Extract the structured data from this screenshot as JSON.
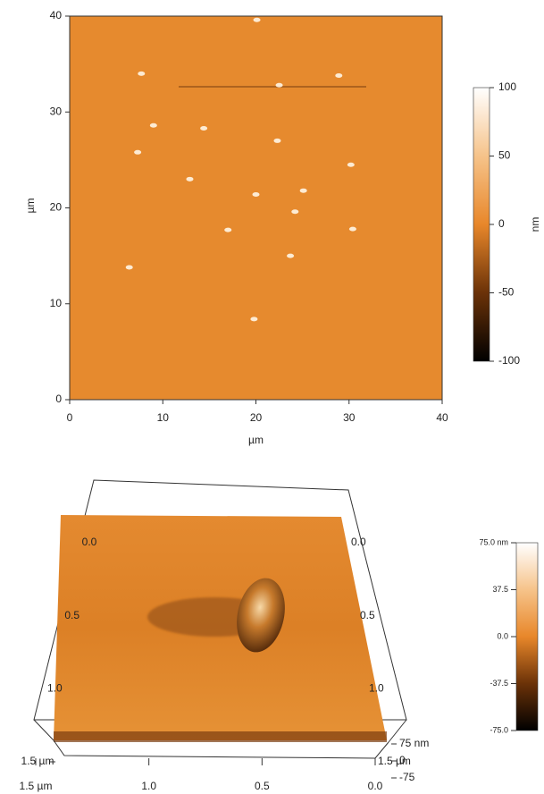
{
  "chart_data": [
    {
      "type": "afm-map",
      "xlabel": "µm",
      "ylabel": "µm",
      "xlim": [
        0,
        40
      ],
      "ylim": [
        0,
        40
      ],
      "xticks": [
        0,
        10,
        20,
        30,
        40
      ],
      "yticks": [
        0,
        10,
        20,
        30,
        40
      ],
      "spots": {
        "x": [
          20.1,
          22.5,
          7.7,
          28.9,
          9.0,
          14.4,
          22.3,
          7.3,
          30.2,
          12.9,
          20.0,
          25.1,
          24.2,
          17.0,
          30.4,
          23.7,
          6.4,
          19.8
        ],
        "y": [
          39.6,
          32.8,
          34.0,
          33.8,
          28.6,
          28.3,
          27.0,
          25.8,
          24.5,
          23.0,
          21.4,
          21.8,
          19.6,
          17.7,
          17.8,
          15.0,
          13.8,
          8.4
        ]
      },
      "colorbar": {
        "lim": [
          -100,
          100
        ],
        "ticks": [
          100,
          50,
          0,
          -50,
          -100
        ],
        "label": "nm"
      }
    },
    {
      "type": "surface3d",
      "xlim": [
        0,
        1.5
      ],
      "xticks": [
        {
          "value": 1.5,
          "label": "1.5 µm"
        },
        {
          "value": 1,
          "label": "1.0"
        },
        0.5,
        {
          "value": 0,
          "label": "0.0"
        }
      ],
      "ylim": [
        0,
        1.5
      ],
      "yticks": [
        {
          "value": 0,
          "label": "0.0"
        },
        0.5,
        {
          "value": 1,
          "label": "1.0"
        },
        {
          "value": 1.5,
          "label": "1.5 µm"
        }
      ],
      "zlim": [
        -75,
        75
      ],
      "zticks": [
        {
          "value": 75,
          "label": "75 nm"
        },
        0,
        -75
      ],
      "colorbar": {
        "lim": [
          -75,
          75
        ],
        "ticks": [
          {
            "value": 75,
            "label": "75.0 nm"
          },
          37.5,
          {
            "value": 0,
            "label": "0.0"
          },
          -37.5,
          {
            "value": -75,
            "label": "-75.0"
          }
        ]
      }
    }
  ]
}
